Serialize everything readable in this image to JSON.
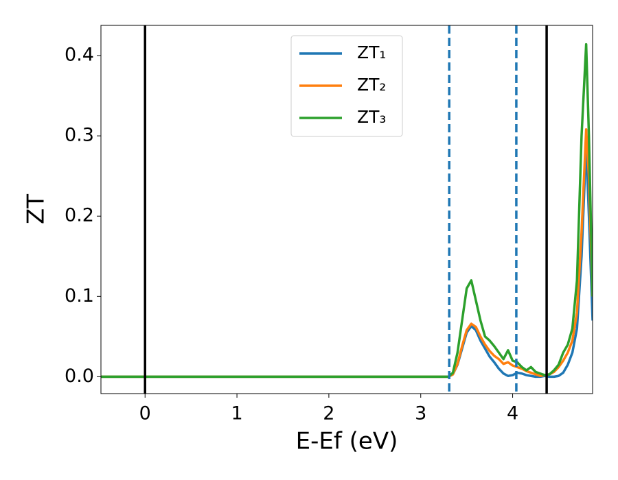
{
  "chart_data": {
    "type": "line",
    "xlabel": "E-Ef (eV)",
    "ylabel": "ZT",
    "x": [
      -0.48,
      3.3,
      3.35,
      3.4,
      3.45,
      3.5,
      3.55,
      3.6,
      3.65,
      3.7,
      3.75,
      3.8,
      3.85,
      3.9,
      3.95,
      4.0,
      4.05,
      4.1,
      4.15,
      4.2,
      4.25,
      4.3,
      4.35,
      4.4,
      4.45,
      4.5,
      4.55,
      4.6,
      4.65,
      4.7,
      4.75,
      4.8,
      4.83,
      4.87
    ],
    "series": [
      {
        "name": "ZT₁",
        "color": "#1f77b4",
        "values": [
          0,
          0,
          0.003,
          0.015,
          0.035,
          0.055,
          0.063,
          0.058,
          0.045,
          0.035,
          0.025,
          0.018,
          0.01,
          0.004,
          0.001,
          0.002,
          0.005,
          0.004,
          0.002,
          0.001,
          0,
          0,
          0.001,
          0,
          0,
          0.001,
          0.005,
          0.015,
          0.03,
          0.06,
          0.15,
          0.29,
          0.2,
          0.07
        ]
      },
      {
        "name": "ZT₂",
        "color": "#ff7f0e",
        "values": [
          0,
          0,
          0.003,
          0.016,
          0.038,
          0.058,
          0.066,
          0.062,
          0.05,
          0.04,
          0.032,
          0.026,
          0.022,
          0.016,
          0.018,
          0.014,
          0.012,
          0.01,
          0.007,
          0.005,
          0.003,
          0.001,
          0.002,
          0.003,
          0.006,
          0.012,
          0.02,
          0.03,
          0.045,
          0.08,
          0.18,
          0.308,
          0.25,
          0.1
        ]
      },
      {
        "name": "ZT₃",
        "color": "#2ca02c",
        "values": [
          0,
          0,
          0.005,
          0.03,
          0.07,
          0.11,
          0.12,
          0.095,
          0.07,
          0.05,
          0.045,
          0.038,
          0.03,
          0.022,
          0.033,
          0.02,
          0.018,
          0.012,
          0.008,
          0.012,
          0.006,
          0.004,
          0.002,
          0.003,
          0.008,
          0.015,
          0.03,
          0.04,
          0.06,
          0.12,
          0.3,
          0.414,
          0.3,
          0.1
        ]
      }
    ],
    "vlines": [
      {
        "x": 0,
        "color": "#000000",
        "style": "solid"
      },
      {
        "x": 4.37,
        "color": "#000000",
        "style": "solid"
      },
      {
        "x": 3.31,
        "color": "#1f77b4",
        "style": "dashed"
      },
      {
        "x": 4.04,
        "color": "#1f77b4",
        "style": "dashed"
      }
    ],
    "xlim": [
      -0.48,
      4.87
    ],
    "xticks": [
      0,
      1,
      2,
      3,
      4
    ],
    "ylim": [
      -0.021,
      0.4376
    ],
    "yticks": [
      {
        "value": 0,
        "label": "0.0"
      },
      0.1,
      0.2,
      0.3,
      0.4
    ],
    "legend": "upper center"
  }
}
